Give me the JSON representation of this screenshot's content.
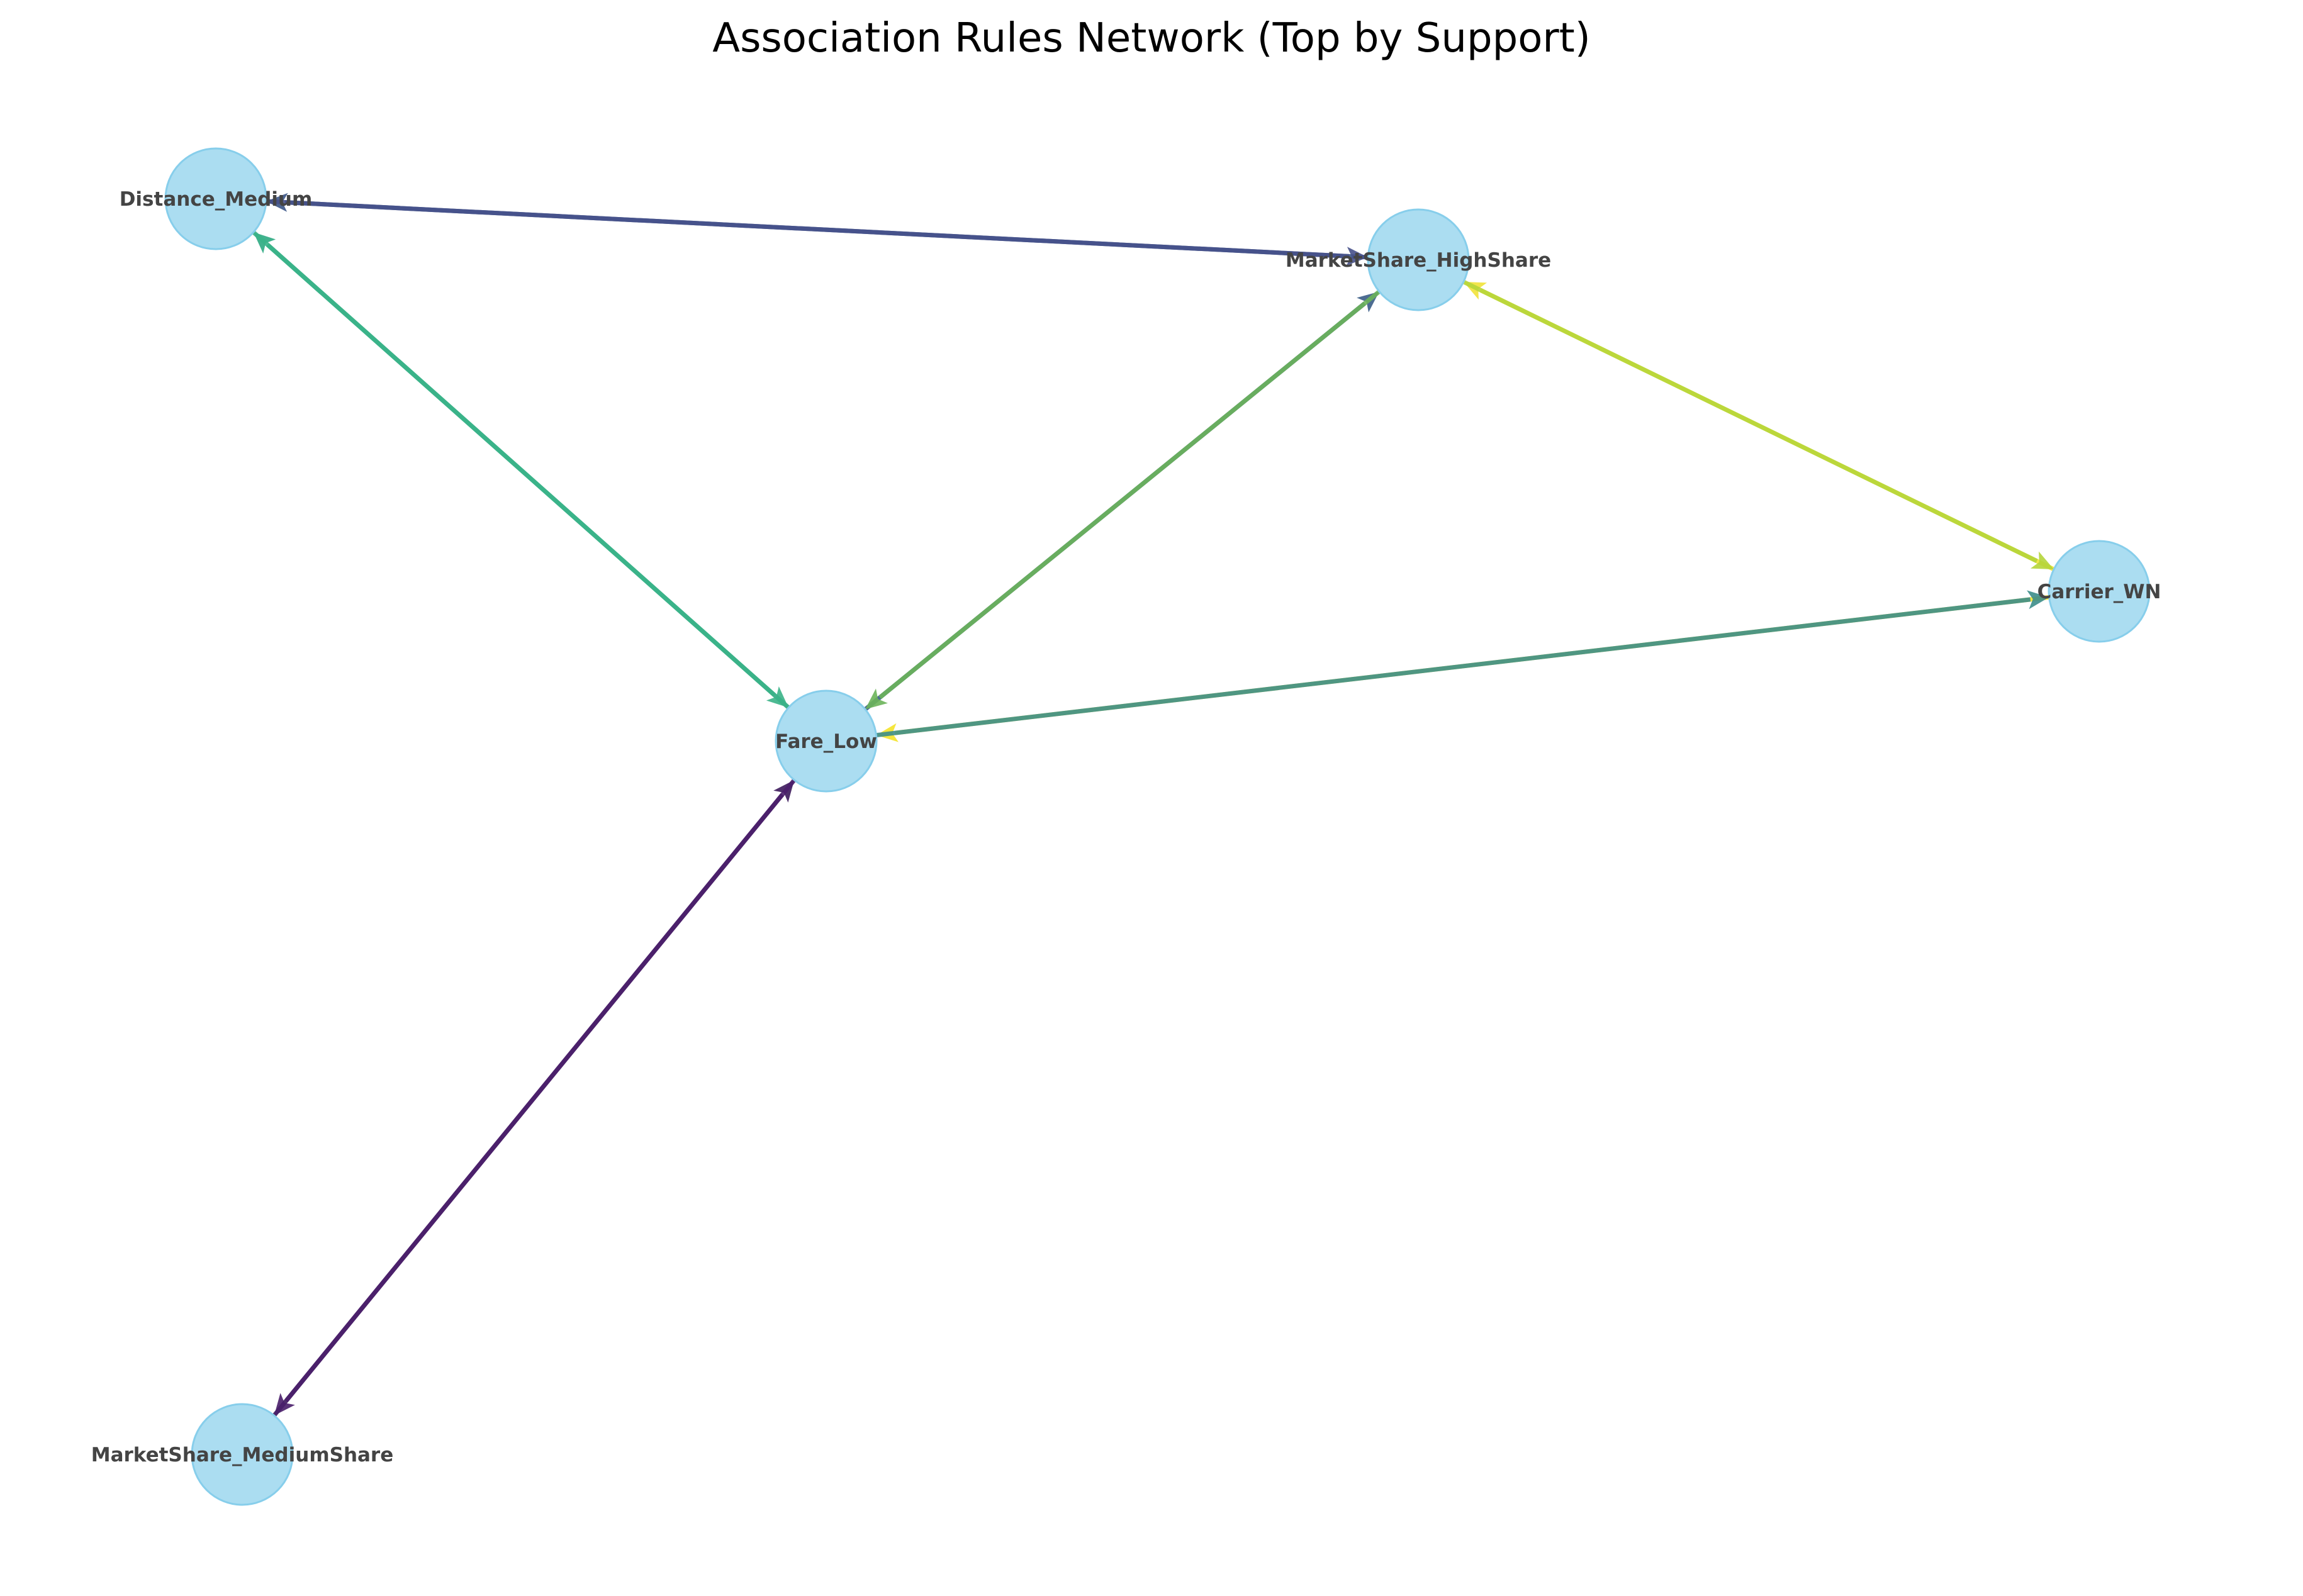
{
  "title": "Association Rules Network (Top by Support)",
  "node_style": {
    "fill": "#87ceeb"
  },
  "nodes": [
    {
      "id": "Distance_Medium",
      "label": "Distance_Medium"
    },
    {
      "id": "MarketShare_HighShare",
      "label": "MarketShare_HighShare"
    },
    {
      "id": "Carrier_WN",
      "label": "Carrier_WN"
    },
    {
      "id": "Fare_Low",
      "label": "Fare_Low"
    },
    {
      "id": "MarketShare_MediumShare",
      "label": "MarketShare_MediumShare"
    }
  ],
  "edges": [
    {
      "from": "MarketShare_HighShare",
      "to": "Distance_Medium",
      "color": "#3b5688"
    },
    {
      "from": "Distance_Medium",
      "to": "MarketShare_HighShare",
      "color": "#46508a"
    },
    {
      "from": "Fare_Low",
      "to": "Distance_Medium",
      "color": "#2eaa82"
    },
    {
      "from": "Distance_Medium",
      "to": "Fare_Low",
      "color": "#3ab388"
    },
    {
      "from": "Fare_Low",
      "to": "MarketShare_HighShare",
      "color": "#3a5d87"
    },
    {
      "from": "MarketShare_HighShare",
      "to": "Fare_Low",
      "color": "#6cb45a"
    },
    {
      "from": "Carrier_WN",
      "to": "MarketShare_HighShare",
      "color": "#f1e339"
    },
    {
      "from": "MarketShare_HighShare",
      "to": "Carrier_WN",
      "color": "#b5d53a"
    },
    {
      "from": "Carrier_WN",
      "to": "Fare_Low",
      "color": "#f5e42a"
    },
    {
      "from": "Fare_Low",
      "to": "Carrier_WN",
      "color": "#3d8d8a"
    },
    {
      "from": "MarketShare_MediumShare",
      "to": "Fare_Low",
      "color": "#3d1a5c"
    },
    {
      "from": "Fare_Low",
      "to": "MarketShare_MediumShare",
      "color": "#4a1f6b"
    }
  ]
}
